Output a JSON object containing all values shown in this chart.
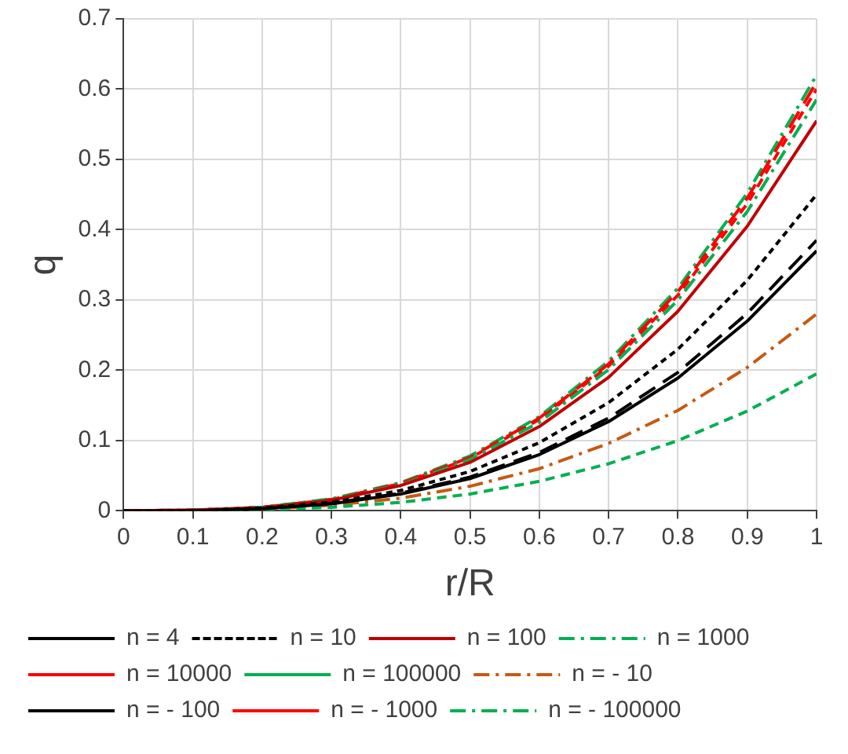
{
  "chart_data": {
    "type": "line",
    "xlabel": "r/R",
    "ylabel": "q",
    "x": [
      0,
      0.1,
      0.2,
      0.3,
      0.4,
      0.5,
      0.6,
      0.7,
      0.8,
      0.9,
      1
    ],
    "xlim": [
      0,
      1
    ],
    "xticks": [
      0,
      0.1,
      0.2,
      0.3,
      0.4,
      0.5,
      0.6,
      0.7,
      0.8,
      0.9,
      1
    ],
    "ylim": [
      0,
      0.7
    ],
    "yticks": [
      0,
      0.1,
      0.2,
      0.3,
      0.4,
      0.5,
      0.6,
      0.7
    ],
    "grid": true,
    "legend": "bottom",
    "marker": "none",
    "series": [
      {
        "name": "n = 4",
        "color": "#000000",
        "line_style": "solid",
        "values": [
          0,
          0,
          0.003,
          0.01,
          0.024,
          0.046,
          0.08,
          0.127,
          0.189,
          0.27,
          0.37
        ]
      },
      {
        "name": "n = 10",
        "color": "#000000",
        "line_style": "dotted",
        "values": [
          0,
          0,
          0.004,
          0.012,
          0.029,
          0.056,
          0.097,
          0.154,
          0.23,
          0.328,
          0.45
        ]
      },
      {
        "name": "n = 100",
        "color": "#c00000",
        "line_style": "solid",
        "values": [
          0,
          0.001,
          0.004,
          0.015,
          0.036,
          0.069,
          0.12,
          0.19,
          0.284,
          0.405,
          0.555
        ]
      },
      {
        "name": "n = 1000",
        "color": "#00b050",
        "line_style": "dashdot",
        "values": [
          0,
          0.001,
          0.005,
          0.016,
          0.037,
          0.073,
          0.126,
          0.201,
          0.3,
          0.426,
          0.585
        ]
      },
      {
        "name": "n = 10000",
        "color": "#ff0000",
        "line_style": "longdash",
        "values": [
          0,
          0.001,
          0.005,
          0.016,
          0.039,
          0.076,
          0.132,
          0.209,
          0.312,
          0.445,
          0.61
        ]
      },
      {
        "name": "n = 100000",
        "color": "#00b050",
        "line_style": "dashed",
        "values": [
          0,
          0,
          0.002,
          0.005,
          0.012,
          0.024,
          0.042,
          0.067,
          0.1,
          0.142,
          0.195
        ]
      },
      {
        "name": "n = - 10",
        "color": "#c55a11",
        "line_style": "dashdot",
        "values": [
          0,
          0,
          0.002,
          0.008,
          0.018,
          0.035,
          0.06,
          0.096,
          0.143,
          0.204,
          0.28
        ]
      },
      {
        "name": "n = - 100",
        "color": "#000000",
        "line_style": "longdash",
        "values": [
          0,
          0,
          0.003,
          0.011,
          0.025,
          0.048,
          0.083,
          0.132,
          0.197,
          0.281,
          0.385
        ]
      },
      {
        "name": "n = - 1000",
        "color": "#ff0000",
        "line_style": "dashed",
        "values": [
          0,
          0.001,
          0.005,
          0.016,
          0.038,
          0.075,
          0.13,
          0.206,
          0.307,
          0.437,
          0.6
        ]
      },
      {
        "name": "n = - 100000",
        "color": "#00b050",
        "line_style": "dashdot",
        "values": [
          0,
          0.001,
          0.005,
          0.017,
          0.04,
          0.078,
          0.134,
          0.213,
          0.317,
          0.452,
          0.62
        ]
      }
    ]
  }
}
